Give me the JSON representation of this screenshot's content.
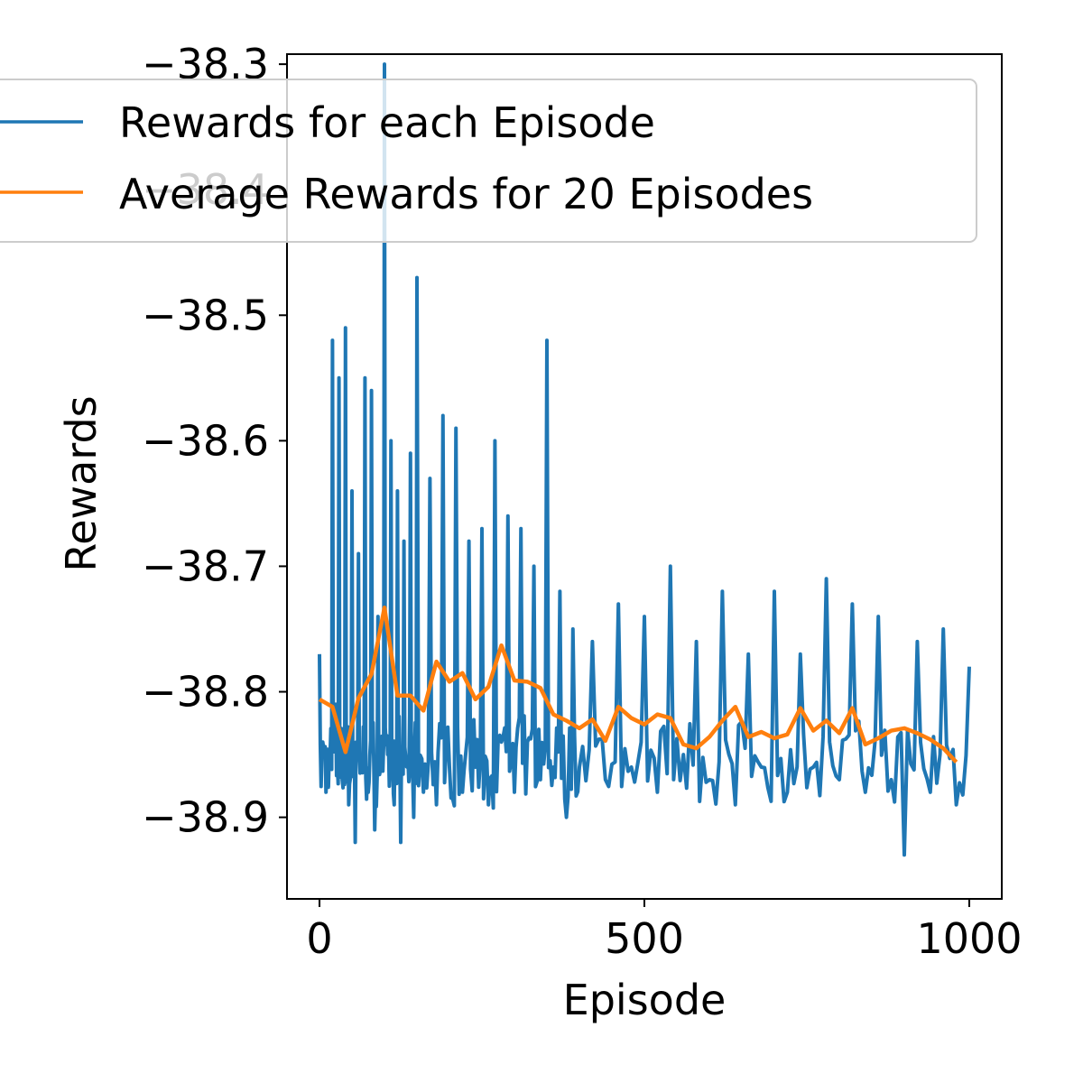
{
  "chart_data": {
    "type": "line",
    "xlabel": "Episode",
    "ylabel": "Rewards",
    "xlim": [
      -50,
      1050
    ],
    "ylim": [
      -38.965,
      -38.292
    ],
    "xticks": [
      0,
      500,
      1000
    ],
    "xtick_labels": [
      "0",
      "500",
      "1000"
    ],
    "yticks": [
      -38.3,
      -38.4,
      -38.5,
      -38.6,
      -38.7,
      -38.8,
      -38.9
    ],
    "ytick_labels": [
      "−38.3",
      "−38.4",
      "−38.5",
      "−38.6",
      "−38.7",
      "−38.8",
      "−38.9"
    ],
    "grid": false,
    "legend_position": "top-right",
    "series": [
      {
        "name": "Rewards for each Episode",
        "color": "#1f77b4",
        "noise_seed": 7,
        "noise_amplitude": 0.028,
        "x": [
          0,
          5,
          10,
          15,
          20,
          25,
          30,
          35,
          40,
          45,
          50,
          55,
          60,
          65,
          70,
          75,
          80,
          85,
          90,
          95,
          100,
          105,
          110,
          115,
          120,
          125,
          130,
          135,
          140,
          145,
          150,
          160,
          170,
          180,
          190,
          200,
          210,
          220,
          230,
          240,
          250,
          260,
          270,
          280,
          290,
          300,
          310,
          320,
          330,
          340,
          350,
          360,
          370,
          380,
          390,
          400,
          420,
          440,
          460,
          480,
          500,
          520,
          540,
          560,
          580,
          600,
          620,
          640,
          660,
          680,
          700,
          720,
          740,
          760,
          780,
          800,
          820,
          840,
          860,
          880,
          900,
          920,
          940,
          960,
          980,
          1000
        ],
        "values": [
          -38.77,
          -38.84,
          -38.88,
          -38.85,
          -38.52,
          -38.81,
          -38.55,
          -38.87,
          -38.51,
          -38.89,
          -38.64,
          -38.92,
          -38.69,
          -38.86,
          -38.55,
          -38.88,
          -38.56,
          -38.91,
          -38.74,
          -38.86,
          -38.3,
          -38.85,
          -38.6,
          -38.89,
          -38.64,
          -38.92,
          -38.68,
          -38.86,
          -38.61,
          -38.9,
          -38.47,
          -38.88,
          -38.63,
          -38.89,
          -38.58,
          -38.86,
          -38.59,
          -38.88,
          -38.68,
          -38.86,
          -38.67,
          -38.89,
          -38.6,
          -38.84,
          -38.66,
          -38.88,
          -38.67,
          -38.84,
          -38.7,
          -38.87,
          -38.52,
          -38.86,
          -38.72,
          -38.9,
          -38.75,
          -38.86,
          -38.76,
          -38.87,
          -38.73,
          -38.86,
          -38.74,
          -38.88,
          -38.7,
          -38.85,
          -38.76,
          -38.87,
          -38.72,
          -38.89,
          -38.77,
          -38.86,
          -38.72,
          -38.88,
          -38.77,
          -38.86,
          -38.71,
          -38.87,
          -38.73,
          -38.88,
          -38.74,
          -38.87,
          -38.93,
          -38.76,
          -38.88,
          -38.75,
          -38.89,
          -38.78
        ]
      },
      {
        "name": "Average Rewards for 20 Episodes",
        "color": "#ff7f0e",
        "x": [
          0,
          20,
          40,
          60,
          80,
          100,
          120,
          140,
          160,
          180,
          200,
          220,
          240,
          260,
          280,
          300,
          320,
          340,
          360,
          380,
          400,
          420,
          440,
          460,
          480,
          500,
          520,
          540,
          560,
          580,
          600,
          620,
          640,
          660,
          680,
          700,
          720,
          740,
          760,
          780,
          800,
          820,
          840,
          860,
          880,
          900,
          920,
          940,
          960,
          980
        ],
        "values": [
          -38.806,
          -38.812,
          -38.848,
          -38.805,
          -38.786,
          -38.733,
          -38.803,
          -38.803,
          -38.815,
          -38.776,
          -38.792,
          -38.785,
          -38.806,
          -38.796,
          -38.763,
          -38.791,
          -38.792,
          -38.797,
          -38.818,
          -38.823,
          -38.829,
          -38.822,
          -38.839,
          -38.812,
          -38.821,
          -38.826,
          -38.818,
          -38.821,
          -38.842,
          -38.845,
          -38.836,
          -38.823,
          -38.812,
          -38.836,
          -38.832,
          -38.837,
          -38.834,
          -38.813,
          -38.831,
          -38.823,
          -38.833,
          -38.813,
          -38.842,
          -38.837,
          -38.831,
          -38.829,
          -38.833,
          -38.838,
          -38.845,
          -38.856
        ]
      }
    ]
  }
}
